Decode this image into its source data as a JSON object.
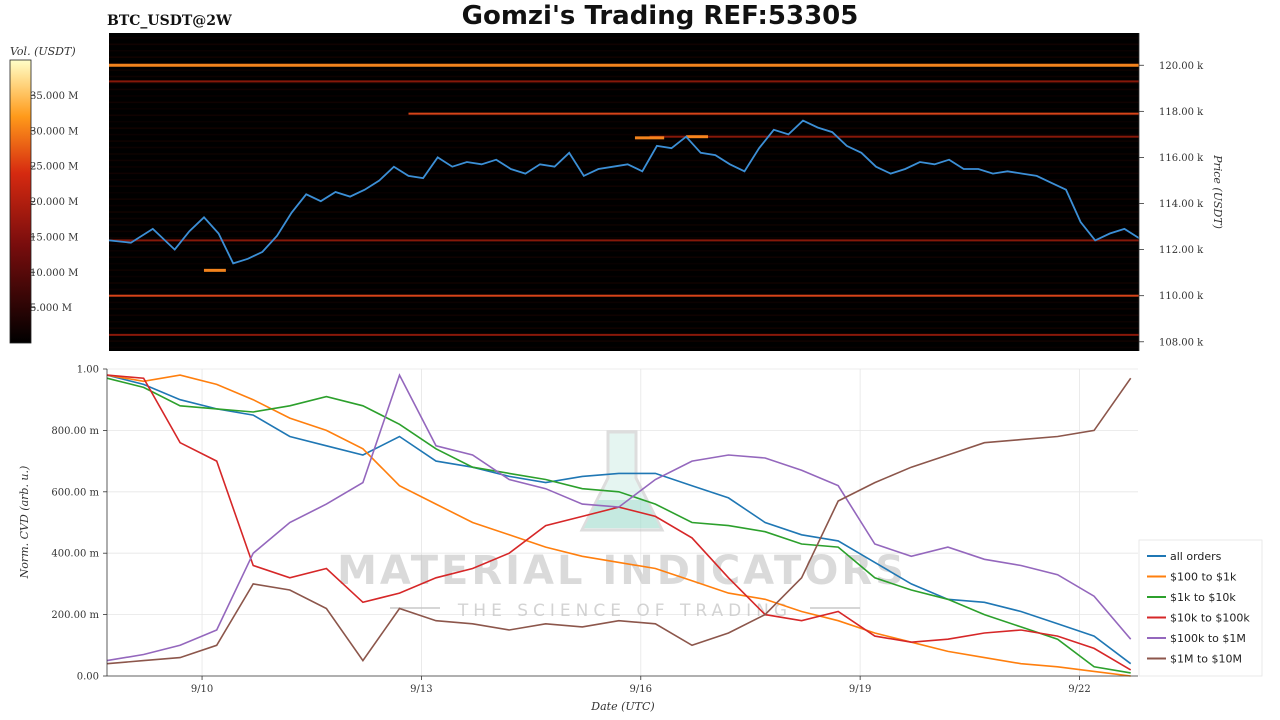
{
  "header": {
    "symbol": "BTC_USDT@2W",
    "title": "Gomzi's Trading REF:53305"
  },
  "watermark": {
    "line1": "MATERIAL INDICATORS",
    "line2": "THE SCIENCE OF TRADING"
  },
  "colors": {
    "heatmap_bg": "#000000",
    "price_line": "#3c8fd6",
    "wall_bright": "#ff8a1f",
    "wall_mid": "#b3200c",
    "wall_dim": "#4a0a06"
  },
  "chart_data": [
    {
      "type": "heatmap",
      "title": "Gomzi's Trading REF:53305",
      "symbol": "BTC_USDT@2W",
      "colorbar_label": "Vol. (USDT)",
      "colorbar_ticks": [
        "5.000 M",
        "10.000 M",
        "15.000 M",
        "20.000 M",
        "25.000 M",
        "30.000 M",
        "35.000 M"
      ],
      "colorbar_values": [
        5,
        10,
        15,
        20,
        25,
        30,
        35
      ],
      "colorbar_range": [
        0,
        40
      ],
      "ylabel": "Price (USDT)",
      "y_ticks": [
        "108.00 k",
        "110.00 k",
        "112.00 k",
        "114.00 k",
        "116.00 k",
        "118.00 k",
        "120.00 k"
      ],
      "y_tick_values": [
        108,
        110,
        112,
        114,
        116,
        118,
        120
      ],
      "ylim": [
        107.6,
        121.4
      ],
      "xlim": [
        0,
        14.1
      ],
      "price_series": {
        "x": [
          0,
          0.3,
          0.6,
          0.9,
          1.1,
          1.3,
          1.5,
          1.7,
          1.9,
          2.1,
          2.3,
          2.5,
          2.7,
          2.9,
          3.1,
          3.3,
          3.5,
          3.7,
          3.9,
          4.1,
          4.3,
          4.5,
          4.7,
          4.9,
          5.1,
          5.3,
          5.5,
          5.7,
          5.9,
          6.1,
          6.3,
          6.5,
          6.7,
          6.9,
          7.1,
          7.3,
          7.5,
          7.7,
          7.9,
          8.1,
          8.3,
          8.5,
          8.7,
          8.9,
          9.1,
          9.3,
          9.5,
          9.7,
          9.9,
          10.1,
          10.3,
          10.5,
          10.7,
          10.9,
          11.1,
          11.3,
          11.5,
          11.7,
          11.9,
          12.1,
          12.3,
          12.5,
          12.7,
          12.9,
          13.1,
          13.3,
          13.5,
          13.7,
          13.9,
          14.1
        ],
        "y": [
          112.4,
          112.3,
          112.9,
          112.0,
          112.8,
          113.4,
          112.7,
          111.4,
          111.6,
          111.9,
          112.6,
          113.6,
          114.4,
          114.1,
          114.5,
          114.3,
          114.6,
          115.0,
          115.6,
          115.2,
          115.1,
          116.0,
          115.6,
          115.8,
          115.7,
          115.9,
          115.5,
          115.3,
          115.7,
          115.6,
          116.2,
          115.2,
          115.5,
          115.6,
          115.7,
          115.4,
          116.5,
          116.4,
          116.9,
          116.2,
          116.1,
          115.7,
          115.4,
          116.4,
          117.2,
          117.0,
          117.6,
          117.3,
          117.1,
          116.5,
          116.2,
          115.6,
          115.3,
          115.5,
          115.8,
          115.7,
          115.9,
          115.5,
          115.5,
          115.3,
          115.4,
          115.3,
          115.2,
          114.9,
          114.6,
          113.2,
          112.4,
          112.7,
          112.9,
          112.5
        ]
      },
      "walls": [
        {
          "price": 120.0,
          "x": [
            0,
            14.1
          ],
          "level": 34
        },
        {
          "price": 117.9,
          "x": [
            4.1,
            14.1
          ],
          "level": 26
        },
        {
          "price": 110.0,
          "x": [
            0,
            14.1
          ],
          "level": 20
        },
        {
          "price": 116.9,
          "x": [
            7.4,
            14.1
          ],
          "level": 13
        },
        {
          "price": 112.4,
          "x": [
            0,
            14.1
          ],
          "level": 9
        },
        {
          "price": 108.3,
          "x": [
            0,
            14.1
          ],
          "level": 8
        },
        {
          "price": 119.3,
          "x": [
            0,
            14.1
          ],
          "level": 10
        },
        {
          "price": 116.85,
          "x": [
            7.2,
            7.6
          ],
          "level": 30
        },
        {
          "price": 116.9,
          "x": [
            7.9,
            8.2
          ],
          "level": 30
        },
        {
          "price": 111.1,
          "x": [
            1.3,
            1.6
          ],
          "level": 32
        }
      ]
    },
    {
      "type": "line",
      "ylabel": "Norm. CVD (arb. u.)",
      "xlabel": "Date (UTC)",
      "x_ticks": [
        "9/10",
        "9/13",
        "9/16",
        "9/19",
        "9/22"
      ],
      "x_tick_values": [
        1.3,
        4.3,
        7.3,
        10.3,
        13.3
      ],
      "y_ticks": [
        "0.00",
        "200.00 m",
        "400.00 m",
        "600.00 m",
        "800.00 m",
        "1.00"
      ],
      "y_tick_values": [
        0,
        0.2,
        0.4,
        0.6,
        0.8,
        1.0
      ],
      "ylim": [
        0,
        1.0
      ],
      "xlim": [
        0,
        14.1
      ],
      "grid": true,
      "legend_position": "right",
      "x": [
        0,
        0.5,
        1.0,
        1.5,
        2.0,
        2.5,
        3.0,
        3.5,
        4.0,
        4.5,
        5.0,
        5.5,
        6.0,
        6.5,
        7.0,
        7.5,
        8.0,
        8.5,
        9.0,
        9.5,
        10.0,
        10.5,
        11.0,
        11.5,
        12.0,
        12.5,
        13.0,
        13.5,
        14.0
      ],
      "series": [
        {
          "name": "all orders",
          "color": "#1f77b4",
          "values": [
            0.98,
            0.95,
            0.9,
            0.87,
            0.85,
            0.78,
            0.75,
            0.72,
            0.78,
            0.7,
            0.68,
            0.65,
            0.63,
            0.65,
            0.66,
            0.66,
            0.62,
            0.58,
            0.5,
            0.46,
            0.44,
            0.37,
            0.3,
            0.25,
            0.24,
            0.21,
            0.17,
            0.13,
            0.04
          ]
        },
        {
          "name": "$100 to $1k",
          "color": "#ff7f0e",
          "values": [
            0.98,
            0.96,
            0.98,
            0.95,
            0.9,
            0.84,
            0.8,
            0.74,
            0.62,
            0.56,
            0.5,
            0.46,
            0.42,
            0.39,
            0.37,
            0.35,
            0.31,
            0.27,
            0.25,
            0.21,
            0.18,
            0.14,
            0.11,
            0.08,
            0.06,
            0.04,
            0.03,
            0.015,
            0.0
          ]
        },
        {
          "name": "$1k to $10k",
          "color": "#2ca02c",
          "values": [
            0.97,
            0.94,
            0.88,
            0.87,
            0.86,
            0.88,
            0.91,
            0.88,
            0.82,
            0.74,
            0.68,
            0.66,
            0.64,
            0.61,
            0.6,
            0.56,
            0.5,
            0.49,
            0.47,
            0.43,
            0.42,
            0.32,
            0.28,
            0.25,
            0.2,
            0.16,
            0.12,
            0.03,
            0.01
          ]
        },
        {
          "name": "$10k to $100k",
          "color": "#d62728",
          "values": [
            0.98,
            0.97,
            0.76,
            0.7,
            0.36,
            0.32,
            0.35,
            0.24,
            0.27,
            0.32,
            0.35,
            0.4,
            0.49,
            0.52,
            0.55,
            0.52,
            0.45,
            0.32,
            0.2,
            0.18,
            0.21,
            0.13,
            0.11,
            0.12,
            0.14,
            0.15,
            0.13,
            0.09,
            0.02
          ]
        },
        {
          "name": "$100k to $1M",
          "color": "#9467bd",
          "values": [
            0.05,
            0.07,
            0.1,
            0.15,
            0.4,
            0.5,
            0.56,
            0.63,
            0.98,
            0.75,
            0.72,
            0.64,
            0.61,
            0.56,
            0.55,
            0.64,
            0.7,
            0.72,
            0.71,
            0.67,
            0.62,
            0.43,
            0.39,
            0.42,
            0.38,
            0.36,
            0.33,
            0.26,
            0.12
          ]
        },
        {
          "name": "$1M to $10M",
          "color": "#8c564b",
          "values": [
            0.04,
            0.05,
            0.06,
            0.1,
            0.3,
            0.28,
            0.22,
            0.05,
            0.22,
            0.18,
            0.17,
            0.15,
            0.17,
            0.16,
            0.18,
            0.17,
            0.1,
            0.14,
            0.2,
            0.32,
            0.57,
            0.63,
            0.68,
            0.72,
            0.76,
            0.77,
            0.78,
            0.8,
            0.97
          ]
        }
      ]
    }
  ]
}
